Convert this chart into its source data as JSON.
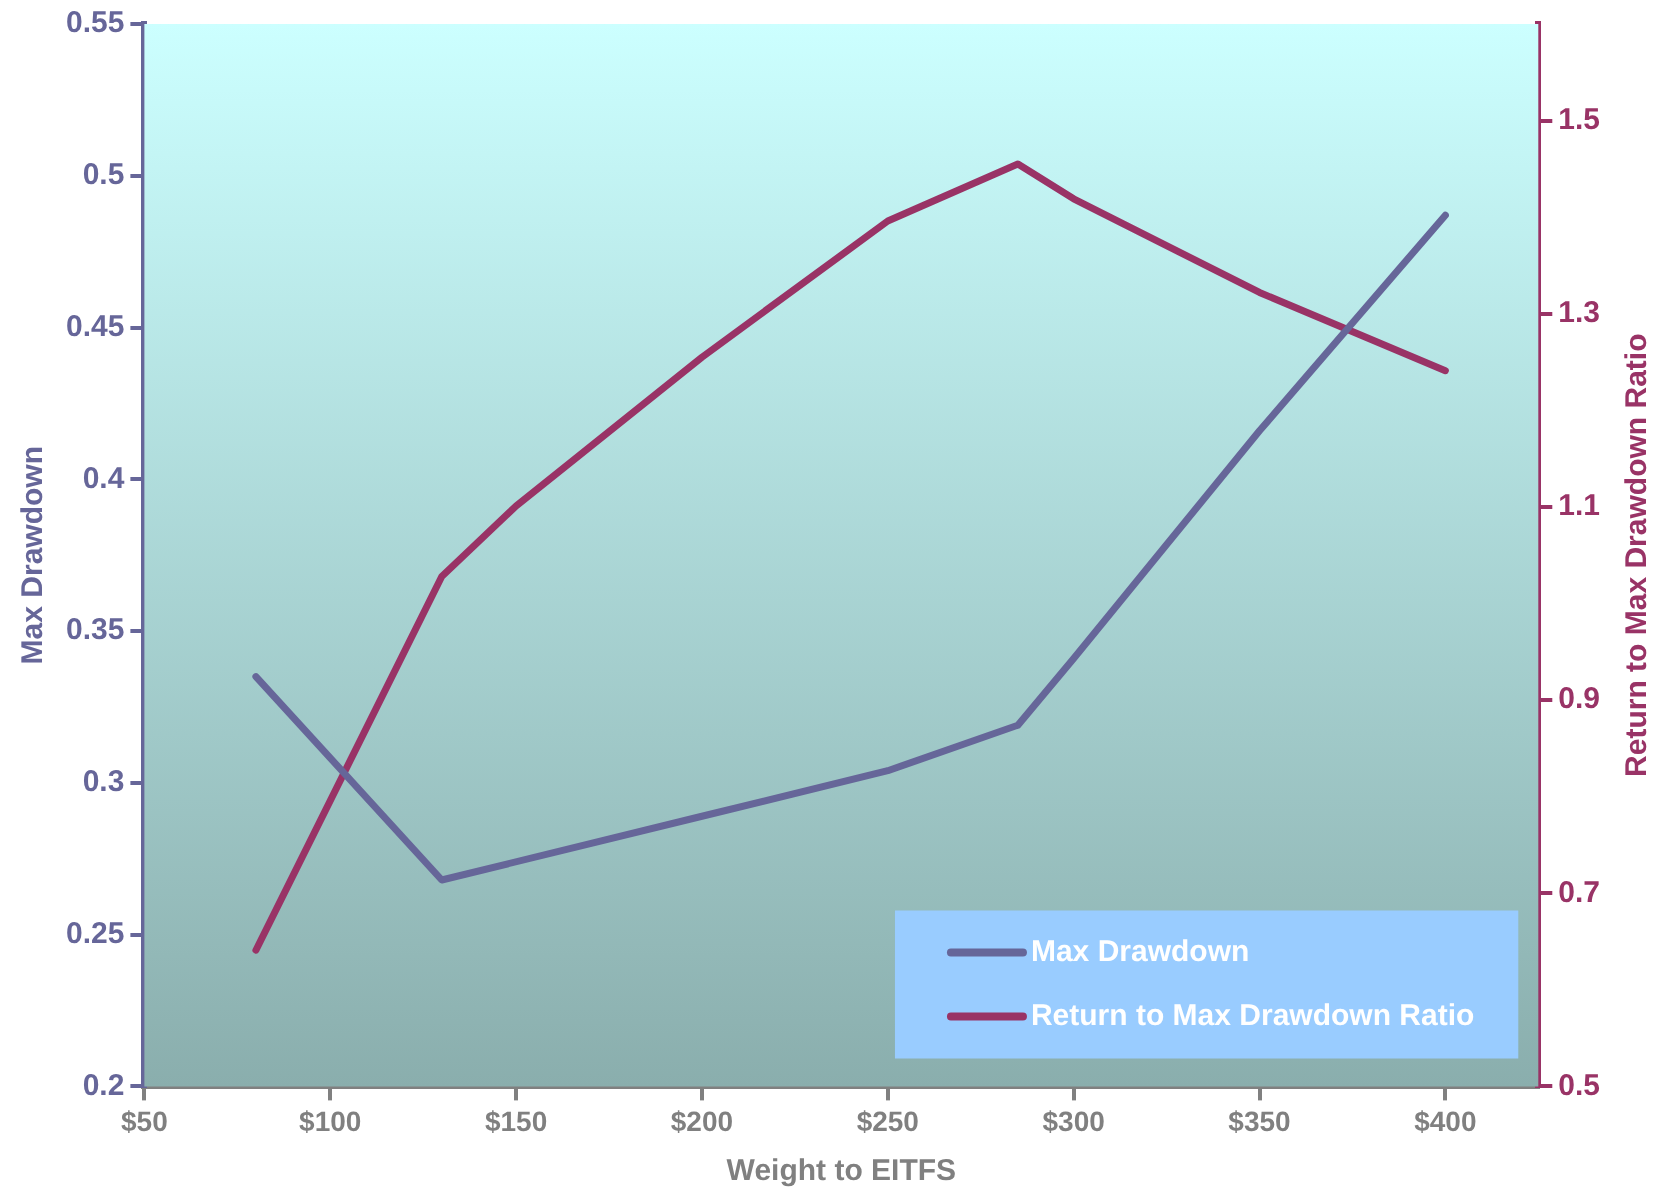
{
  "chart_data": {
    "type": "line",
    "xlabel": "Weight to EITFS",
    "ylabel": "Max Drawdown",
    "y2label": "Return to Max Drawdown Ratio",
    "series": [
      {
        "name": "Max Drawdown",
        "color": "#666699",
        "x": [
          80,
          130,
          200,
          250,
          285,
          300,
          350,
          400
        ],
        "values": [
          0.335,
          0.268,
          0.289,
          0.304,
          0.319,
          0.341,
          0.416,
          0.487
        ]
      },
      {
        "name": "Return to Max Drawdown Ratio",
        "color": "#993366",
        "axis": "y2",
        "x": [
          80,
          130,
          150,
          200,
          250,
          285,
          300,
          350,
          400
        ],
        "values": [
          0.641,
          1.028,
          1.101,
          1.255,
          1.396,
          1.455,
          1.419,
          1.322,
          1.241
        ]
      }
    ],
    "xlim": [
      50,
      425
    ],
    "xticks": [
      {
        "value": 50,
        "label": "$50"
      },
      {
        "value": 100,
        "label": "$100"
      },
      {
        "value": 150,
        "label": "$150"
      },
      {
        "value": 200,
        "label": "$200"
      },
      {
        "value": 250,
        "label": "$250"
      },
      {
        "value": 300,
        "label": "$300"
      },
      {
        "value": 350,
        "label": "$350"
      },
      {
        "value": 400,
        "label": "$400"
      }
    ],
    "ylim": [
      0.2,
      0.55
    ],
    "yticks": [
      0.2,
      0.25,
      0.3,
      0.35,
      0.4,
      0.45,
      0.5,
      0.55
    ],
    "y2lim": [
      0.5,
      1.6
    ],
    "y2ticks": [
      0.5,
      0.7,
      0.9,
      1.1,
      1.3,
      1.5
    ],
    "grid": false,
    "legend": "bottom right",
    "marker": "none",
    "line_style": "solid"
  }
}
